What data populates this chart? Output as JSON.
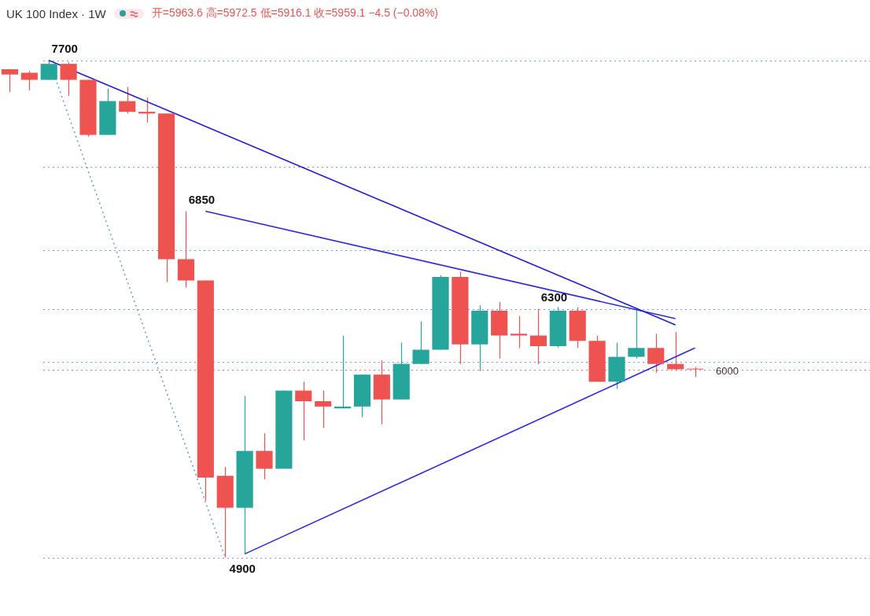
{
  "chart_data": {
    "type": "candlestick",
    "title": "UK 100 Index · 1W",
    "subtitle": "开=5963.6 高=5972.5 低=5916.1 收=5959.1 −4.5 (−0.08%)",
    "categories": [
      null,
      null,
      null,
      null,
      null,
      null,
      null,
      null,
      null,
      null,
      null,
      null,
      null,
      null,
      null,
      null,
      null,
      null,
      null,
      null,
      null,
      null,
      null,
      null,
      null,
      null,
      null,
      null,
      null,
      null,
      null,
      null,
      null,
      null,
      null,
      null
    ],
    "ohlc": [
      [
        7650,
        7650,
        7520,
        7620
      ],
      [
        7630,
        7640,
        7530,
        7590
      ],
      [
        7590,
        7700,
        7590,
        7680
      ],
      [
        7680,
        7690,
        7500,
        7590
      ],
      [
        7590,
        7590,
        7270,
        7280
      ],
      [
        7280,
        7540,
        7280,
        7470
      ],
      [
        7470,
        7550,
        7400,
        7410
      ],
      [
        7410,
        7490,
        7350,
        7400
      ],
      [
        7400,
        7400,
        6450,
        6580
      ],
      [
        6580,
        6850,
        6420,
        6460
      ],
      [
        6460,
        6460,
        5220,
        5350
      ],
      [
        5360,
        5410,
        4900,
        5180
      ],
      [
        5180,
        5810,
        4920,
        5500
      ],
      [
        5500,
        5600,
        5340,
        5400
      ],
      [
        5400,
        5840,
        5400,
        5840
      ],
      [
        5840,
        5890,
        5560,
        5780
      ],
      [
        5780,
        5840,
        5630,
        5750
      ],
      [
        5740,
        6150,
        5740,
        5750
      ],
      [
        5750,
        5930,
        5690,
        5930
      ],
      [
        5930,
        6010,
        5650,
        5790
      ],
      [
        5790,
        6110,
        5790,
        5990
      ],
      [
        5990,
        6230,
        5990,
        6070
      ],
      [
        6070,
        6490,
        6070,
        6480
      ],
      [
        6480,
        6510,
        5990,
        6100
      ],
      [
        6100,
        6320,
        5950,
        6290
      ],
      [
        6290,
        6340,
        6020,
        6150
      ],
      [
        6160,
        6260,
        6080,
        6150
      ],
      [
        6150,
        6300,
        5990,
        6090
      ],
      [
        6090,
        6310,
        6080,
        6290
      ],
      [
        6290,
        6310,
        6080,
        6120
      ],
      [
        6120,
        6150,
        5890,
        5890
      ],
      [
        5890,
        6110,
        5850,
        6030
      ],
      [
        6030,
        6300,
        6020,
        6080
      ],
      [
        6080,
        6160,
        5940,
        5990
      ],
      [
        5990,
        6170,
        5950,
        5960
      ],
      [
        5963.6,
        5972.5,
        5916.1,
        5959.1
      ]
    ],
    "colors": [
      "#ef5350",
      "#ef5350",
      "#26a69a",
      "#ef5350",
      "#ef5350",
      "#26a69a",
      "#ef5350",
      "#ef5350",
      "#ef5350",
      "#ef5350",
      "#ef5350",
      "#ef5350",
      "#26a69a",
      "#ef5350",
      "#26a69a",
      "#ef5350",
      "#ef5350",
      "#26a69a",
      "#26a69a",
      "#ef5350",
      "#26a69a",
      "#26a69a",
      "#26a69a",
      "#ef5350",
      "#26a69a",
      "#ef5350",
      "#ef5350",
      "#ef5350",
      "#26a69a",
      "#ef5350",
      "#ef5350",
      "#26a69a",
      "#26a69a",
      "#ef5350",
      "#ef5350",
      "#ef5350"
    ],
    "series": [
      {
        "type": "line",
        "color": "#1f1fd1",
        "line_style": "solid",
        "values": [
          null,
          null,
          7700,
          null,
          null,
          null,
          null,
          null,
          null,
          null,
          null,
          null,
          null,
          null,
          null,
          null,
          null,
          null,
          null,
          null,
          null,
          null,
          null,
          null,
          null,
          null,
          null,
          null,
          null,
          null,
          null,
          null,
          null,
          null,
          6210,
          null
        ]
      },
      {
        "type": "line",
        "color": "#2a2ae0",
        "line_style": "solid",
        "values": [
          null,
          null,
          null,
          null,
          null,
          null,
          null,
          null,
          null,
          null,
          6850,
          null,
          null,
          null,
          null,
          null,
          null,
          null,
          null,
          null,
          null,
          null,
          null,
          null,
          null,
          null,
          null,
          null,
          null,
          null,
          null,
          null,
          null,
          null,
          6245,
          null
        ]
      },
      {
        "type": "line",
        "color": "#2a2ae0",
        "line_style": "solid",
        "values": [
          null,
          null,
          null,
          null,
          null,
          null,
          null,
          null,
          null,
          null,
          null,
          null,
          4920,
          null,
          null,
          null,
          null,
          null,
          null,
          null,
          null,
          null,
          null,
          null,
          null,
          null,
          null,
          null,
          null,
          null,
          null,
          null,
          null,
          null,
          null,
          6080
        ]
      },
      {
        "type": "line",
        "color": "#6f9be0",
        "line_style": "dotted",
        "values": [
          null,
          null,
          7700,
          null,
          null,
          null,
          null,
          null,
          null,
          null,
          null,
          4900,
          null,
          null,
          null,
          null,
          null,
          null,
          null,
          null,
          null,
          null,
          null,
          null,
          null,
          null,
          null,
          null,
          null,
          null,
          null,
          null,
          null,
          null,
          null,
          null
        ]
      }
    ],
    "ref_lines": [
      {
        "axis": "y",
        "value": 7700,
        "color": "#6f9be0",
        "line_style": "dotted"
      },
      {
        "axis": "y",
        "value": 7100,
        "color": "#6f9be0",
        "line_style": "dotted"
      },
      {
        "axis": "y",
        "value": 6630,
        "color": "#6f9be0",
        "line_style": "dotted"
      },
      {
        "axis": "y",
        "value": 6300,
        "color": "#6f9be0",
        "line_style": "dotted"
      },
      {
        "axis": "y",
        "value": 6000,
        "label": "6000",
        "color": "#6f9be0",
        "line_style": "dotted"
      },
      {
        "axis": "y",
        "value": 5959.1,
        "color": "#e57373",
        "line_style": "dotted"
      },
      {
        "axis": "y",
        "value": 4900,
        "color": "#6f9be0",
        "line_style": "dotted"
      }
    ],
    "annotations": [
      {
        "text": "7700",
        "y": 7700
      },
      {
        "text": "6850",
        "y": 6850
      },
      {
        "text": "6300",
        "y": 6300
      },
      {
        "text": "4900",
        "y": 4900
      }
    ],
    "tick_labels": false
  }
}
